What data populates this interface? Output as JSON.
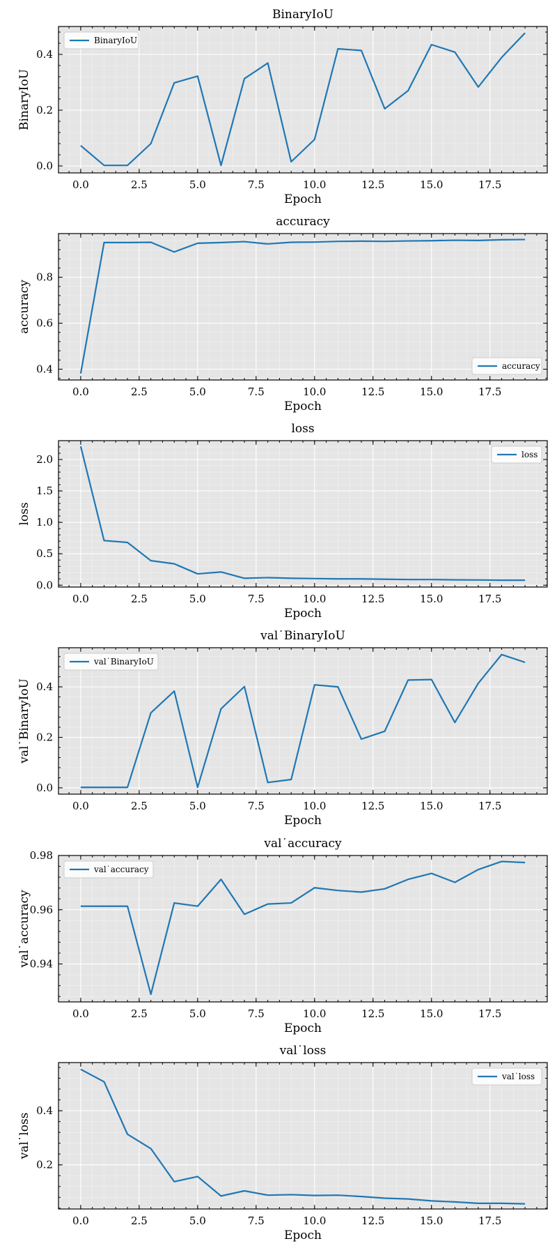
{
  "chart_data": [
    {
      "type": "line",
      "title": "BinaryIoU",
      "xlabel": "Epoch",
      "ylabel": "BinaryIoU",
      "legend_position": "upper-left",
      "xlim": [
        -0.95,
        19.95
      ],
      "ylim": [
        -0.025,
        0.5
      ],
      "xticks": [
        0.0,
        2.5,
        5.0,
        7.5,
        10.0,
        12.5,
        15.0,
        17.5
      ],
      "yticks": [
        0.0,
        0.2,
        0.4
      ],
      "series": [
        {
          "name": "BinaryIoU",
          "x": [
            0,
            1,
            2,
            3,
            4,
            5,
            6,
            7,
            8,
            9,
            10,
            11,
            12,
            13,
            14,
            15,
            16,
            17,
            18,
            19
          ],
          "values": [
            0.073,
            0.002,
            0.002,
            0.08,
            0.298,
            0.322,
            0.002,
            0.313,
            0.369,
            0.015,
            0.095,
            0.42,
            0.414,
            0.205,
            0.27,
            0.435,
            0.408,
            0.283,
            0.389,
            0.477
          ]
        }
      ]
    },
    {
      "type": "line",
      "title": "accuracy",
      "xlabel": "Epoch",
      "ylabel": "accuracy",
      "legend_position": "lower-right",
      "xlim": [
        -0.95,
        19.95
      ],
      "ylim": [
        0.353,
        0.99
      ],
      "xticks": [
        0.0,
        2.5,
        5.0,
        7.5,
        10.0,
        12.5,
        15.0,
        17.5
      ],
      "yticks": [
        0.4,
        0.6,
        0.8
      ],
      "series": [
        {
          "name": "accuracy",
          "x": [
            0,
            1,
            2,
            3,
            4,
            5,
            6,
            7,
            8,
            9,
            10,
            11,
            12,
            13,
            14,
            15,
            16,
            17,
            18,
            19
          ],
          "values": [
            0.381,
            0.951,
            0.951,
            0.952,
            0.91,
            0.948,
            0.951,
            0.955,
            0.945,
            0.952,
            0.953,
            0.956,
            0.957,
            0.956,
            0.958,
            0.959,
            0.961,
            0.96,
            0.963,
            0.964
          ]
        }
      ]
    },
    {
      "type": "line",
      "title": "loss",
      "xlabel": "Epoch",
      "ylabel": "loss",
      "legend_position": "upper-right",
      "xlim": [
        -0.95,
        19.95
      ],
      "ylim": [
        -0.03,
        2.3
      ],
      "xticks": [
        0.0,
        2.5,
        5.0,
        7.5,
        10.0,
        12.5,
        15.0,
        17.5
      ],
      "yticks": [
        0.0,
        0.5,
        1.0,
        1.5,
        2.0
      ],
      "series": [
        {
          "name": "loss",
          "x": [
            0,
            1,
            2,
            3,
            4,
            5,
            6,
            7,
            8,
            9,
            10,
            11,
            12,
            13,
            14,
            15,
            16,
            17,
            18,
            19
          ],
          "values": [
            2.21,
            0.71,
            0.68,
            0.39,
            0.34,
            0.18,
            0.21,
            0.11,
            0.12,
            0.11,
            0.105,
            0.1,
            0.1,
            0.095,
            0.09,
            0.09,
            0.085,
            0.083,
            0.08,
            0.08
          ]
        }
      ]
    },
    {
      "type": "line",
      "title": "val˙BinaryIoU",
      "xlabel": "Epoch",
      "ylabel": "val˙BinaryIoU",
      "legend_position": "upper-left",
      "xlim": [
        -0.95,
        19.95
      ],
      "ylim": [
        -0.025,
        0.555
      ],
      "xticks": [
        0.0,
        2.5,
        5.0,
        7.5,
        10.0,
        12.5,
        15.0,
        17.5
      ],
      "yticks": [
        0.0,
        0.2,
        0.4
      ],
      "series": [
        {
          "name": "val˙BinaryIoU",
          "x": [
            0,
            1,
            2,
            3,
            4,
            5,
            6,
            7,
            8,
            9,
            10,
            11,
            12,
            13,
            14,
            15,
            16,
            17,
            18,
            19
          ],
          "values": [
            0.002,
            0.002,
            0.002,
            0.297,
            0.383,
            0.002,
            0.313,
            0.401,
            0.021,
            0.033,
            0.408,
            0.4,
            0.193,
            0.224,
            0.427,
            0.429,
            0.259,
            0.414,
            0.528,
            0.497
          ]
        }
      ]
    },
    {
      "type": "line",
      "title": "val˙accuracy",
      "xlabel": "Epoch",
      "ylabel": "val˙accuracy",
      "legend_position": "upper-left",
      "xlim": [
        -0.95,
        19.95
      ],
      "ylim": [
        0.926,
        0.98
      ],
      "xticks": [
        0.0,
        2.5,
        5.0,
        7.5,
        10.0,
        12.5,
        15.0,
        17.5
      ],
      "yticks": [
        0.94,
        0.96,
        0.98
      ],
      "series": [
        {
          "name": "val˙accuracy",
          "x": [
            0,
            1,
            2,
            3,
            4,
            5,
            6,
            7,
            8,
            9,
            10,
            11,
            12,
            13,
            14,
            15,
            16,
            17,
            18,
            19
          ],
          "values": [
            0.9613,
            0.9613,
            0.9613,
            0.9288,
            0.9625,
            0.9613,
            0.9712,
            0.9583,
            0.9621,
            0.9625,
            0.9681,
            0.9671,
            0.9665,
            0.9677,
            0.9712,
            0.9734,
            0.9701,
            0.9748,
            0.9778,
            0.9774
          ]
        }
      ]
    },
    {
      "type": "line",
      "title": "val˙loss",
      "xlabel": "Epoch",
      "ylabel": "val˙loss",
      "legend_position": "upper-right",
      "xlim": [
        -0.95,
        19.95
      ],
      "ylim": [
        0.037,
        0.578
      ],
      "xticks": [
        0.0,
        2.5,
        5.0,
        7.5,
        10.0,
        12.5,
        15.0,
        17.5
      ],
      "yticks": [
        0.2,
        0.4
      ],
      "series": [
        {
          "name": "val˙loss",
          "x": [
            0,
            1,
            2,
            3,
            4,
            5,
            6,
            7,
            8,
            9,
            10,
            11,
            12,
            13,
            14,
            15,
            16,
            17,
            18,
            19
          ],
          "values": [
            0.553,
            0.507,
            0.313,
            0.26,
            0.138,
            0.157,
            0.085,
            0.104,
            0.088,
            0.09,
            0.087,
            0.088,
            0.083,
            0.077,
            0.074,
            0.067,
            0.063,
            0.058,
            0.058,
            0.056
          ]
        }
      ]
    }
  ],
  "colors": {
    "line": "#1f77b4",
    "axes_face": "#e5e5e5",
    "grid_major": "#ffffff",
    "grid_minor": "#f2f2f2",
    "frame": "#000000"
  }
}
